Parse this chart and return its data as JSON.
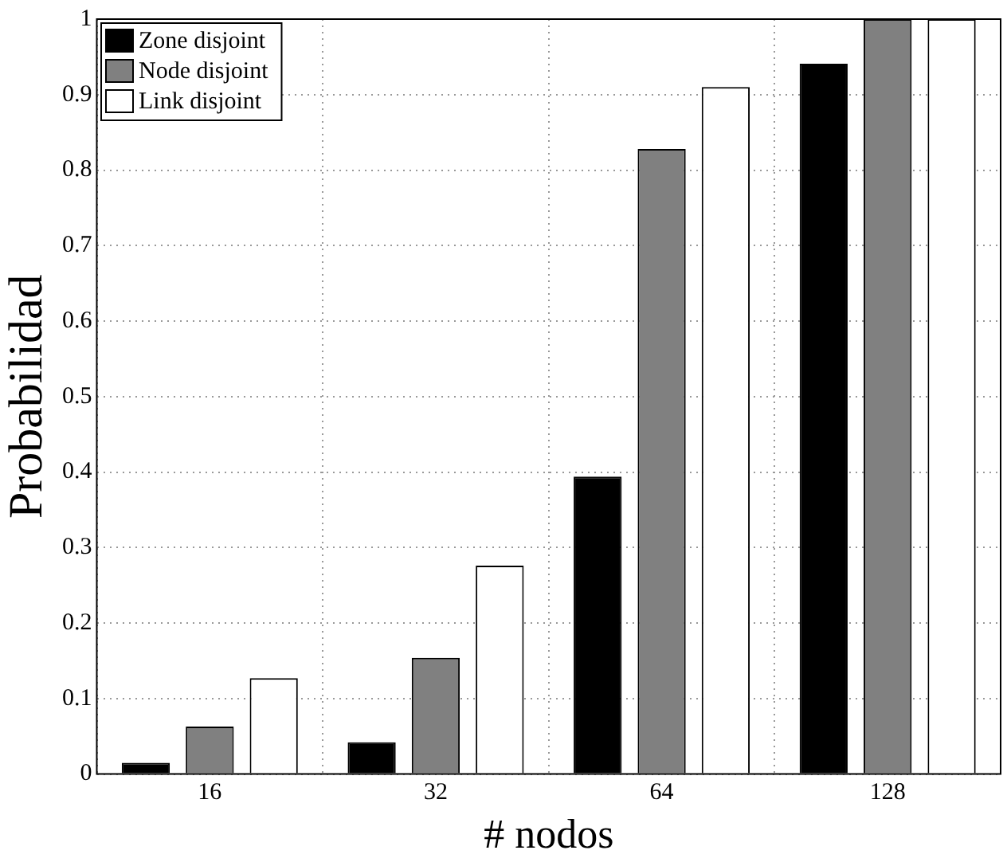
{
  "chart_data": {
    "type": "bar",
    "xlabel": "# nodos",
    "ylabel": "Probabilidad",
    "categories": [
      "16",
      "32",
      "64",
      "128"
    ],
    "series": [
      {
        "name": "Zone disjoint",
        "color": "#000000",
        "values": [
          0.015,
          0.042,
          0.394,
          0.941
        ]
      },
      {
        "name": "Node disjoint",
        "color": "#808080",
        "values": [
          0.063,
          0.154,
          0.828,
          1.0
        ]
      },
      {
        "name": "Link disjoint",
        "color": "#ffffff",
        "values": [
          0.127,
          0.276,
          0.91,
          1.0
        ]
      }
    ],
    "ylim": [
      0,
      1
    ],
    "yticks": [
      0,
      0.1,
      0.2,
      0.3,
      0.4,
      0.5,
      0.6,
      0.7,
      0.8,
      0.9,
      1
    ],
    "grid": true,
    "legend": "top left"
  }
}
